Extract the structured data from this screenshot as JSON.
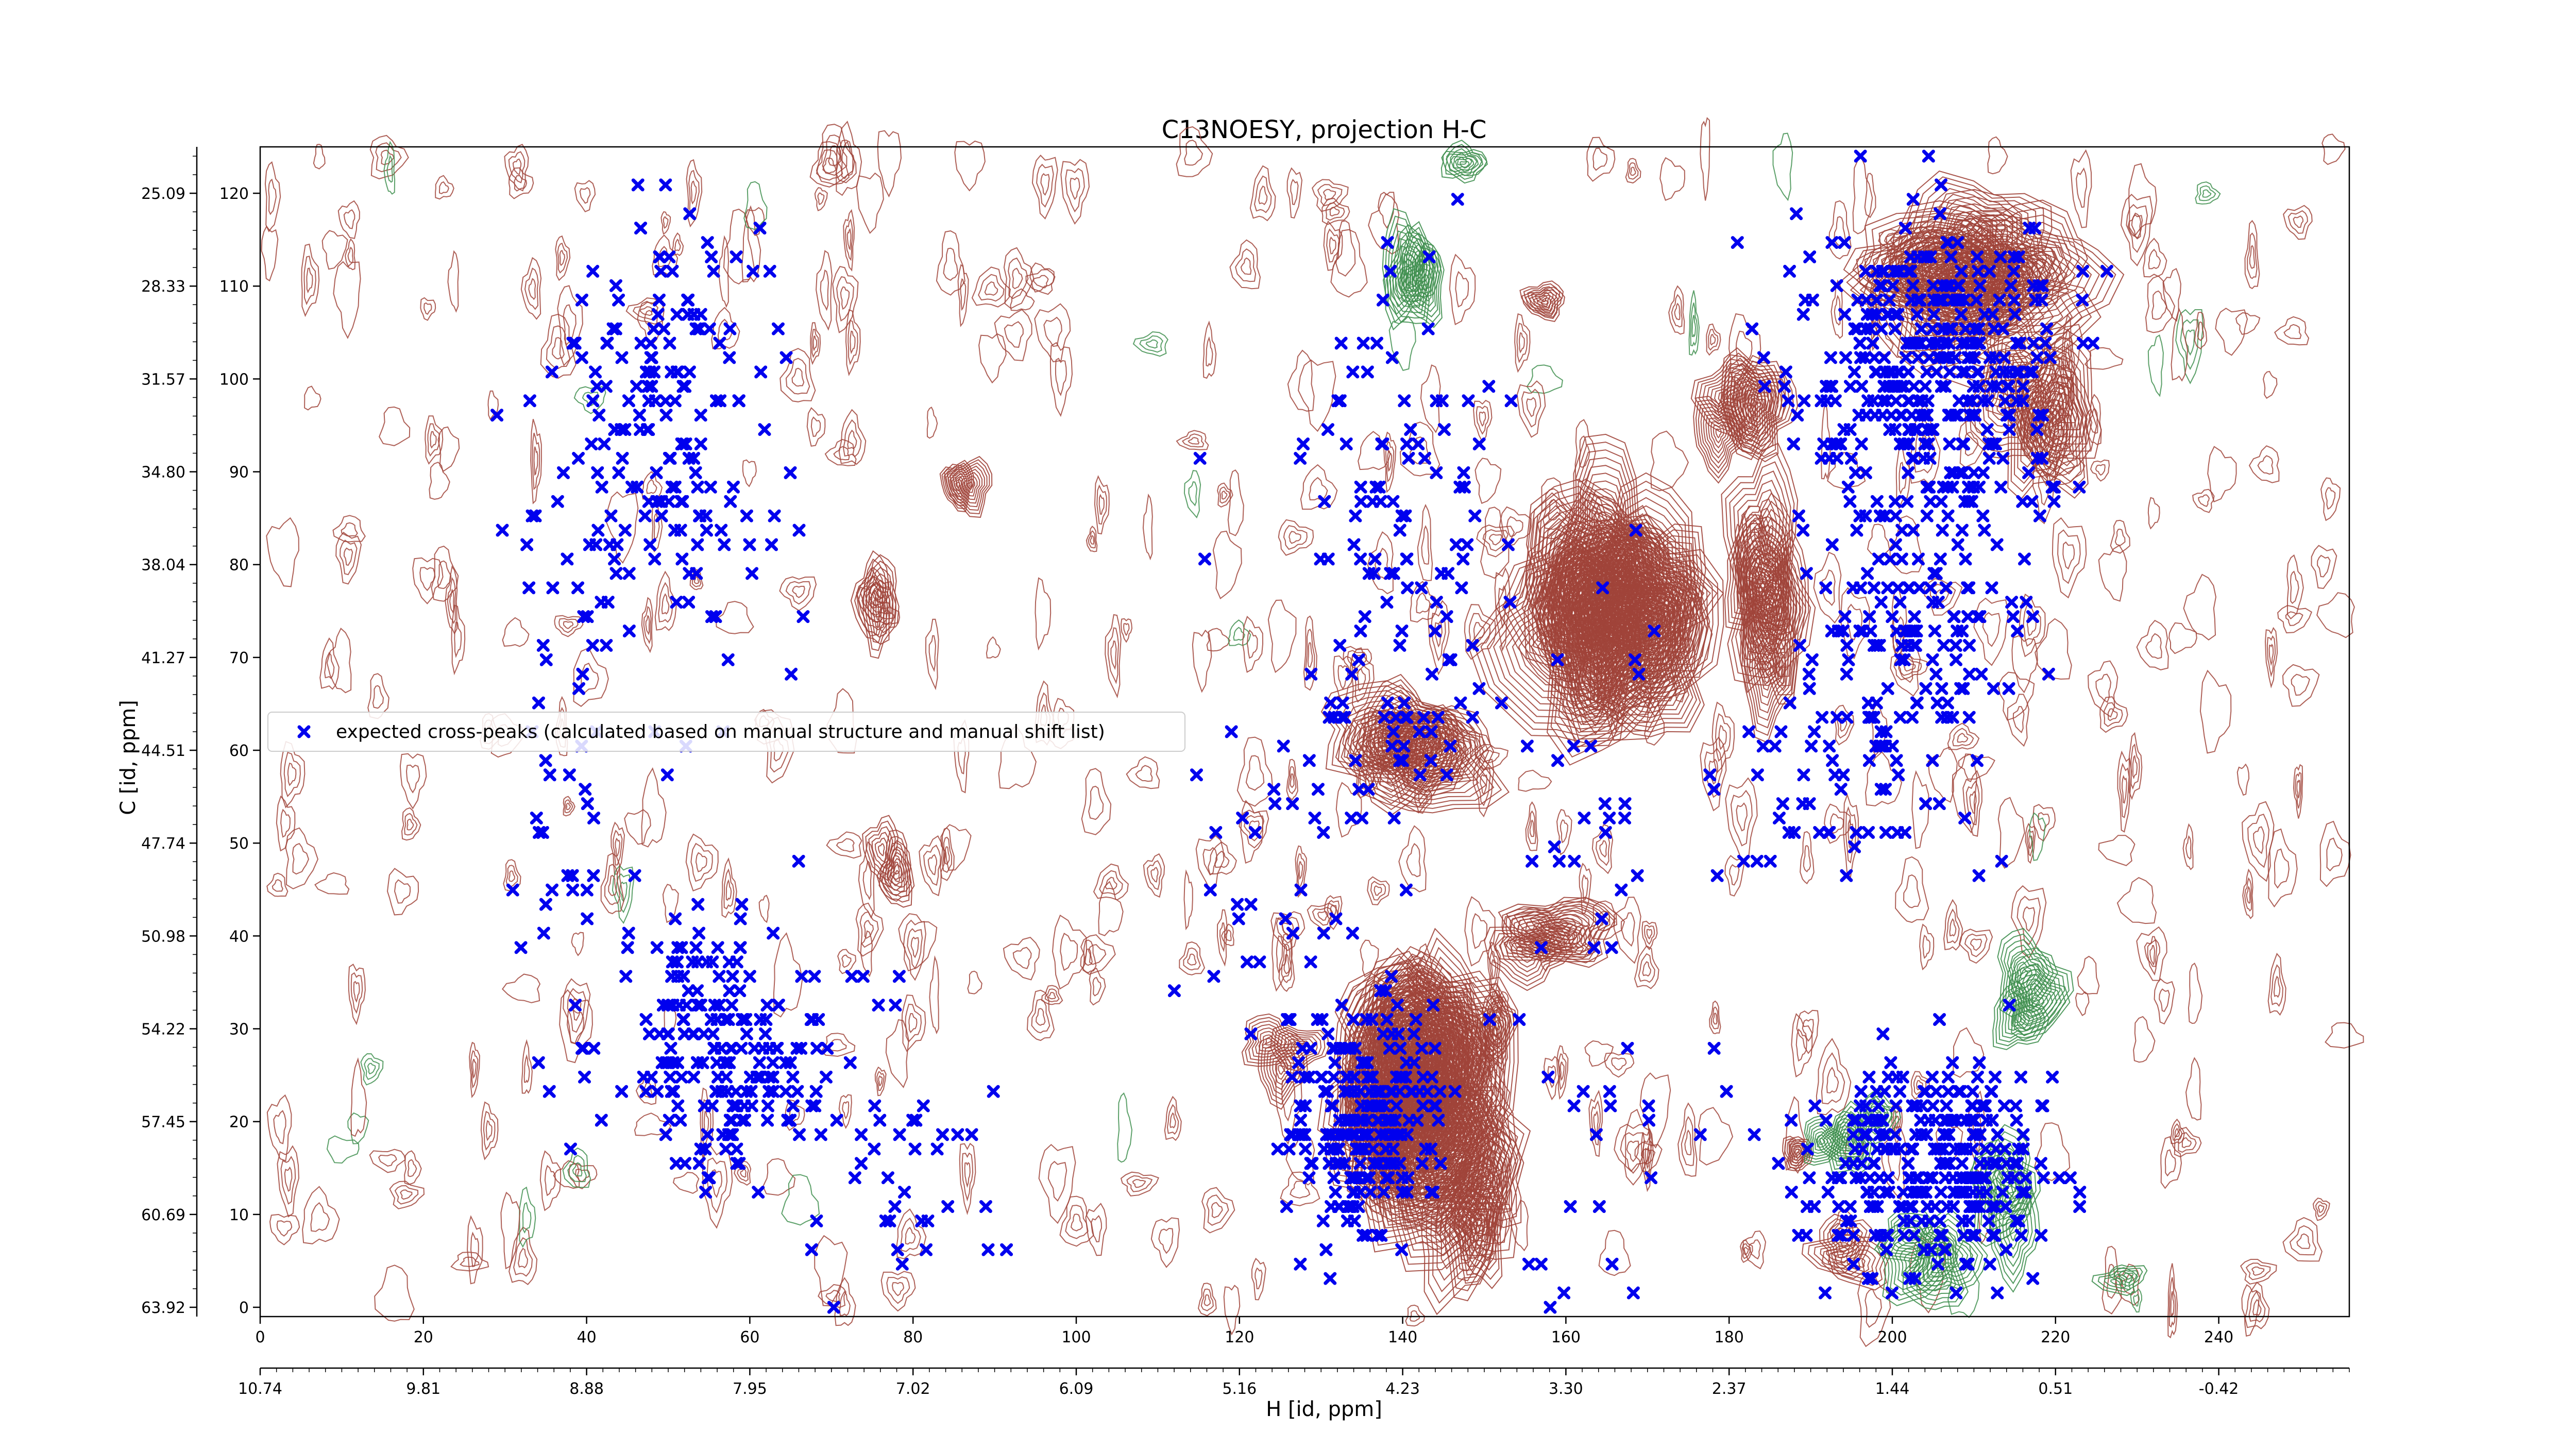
{
  "chart_data": {
    "type": "scatter",
    "title": "C13NOESY, projection H-C",
    "xlabel": "H [id, ppm]",
    "ylabel": "C [id, ppm]",
    "xlim": [
      0,
      256
    ],
    "ylim": [
      -1,
      125
    ],
    "x_index_ticks": [
      "0",
      "20",
      "40",
      "60",
      "80",
      "100",
      "120",
      "140",
      "160",
      "180",
      "200",
      "220",
      "240"
    ],
    "x_ppm_ticks": [
      "10.74",
      "9.81",
      "8.88",
      "7.95",
      "7.02",
      "6.09",
      "5.16",
      "4.23",
      "3.30",
      "2.37",
      "1.44",
      "0.51",
      "-0.42"
    ],
    "y_index_ticks": [
      "0",
      "10",
      "20",
      "30",
      "40",
      "50",
      "60",
      "70",
      "80",
      "90",
      "100",
      "110",
      "120"
    ],
    "y_ppm_ticks": [
      "63.92",
      "60.69",
      "57.45",
      "54.22",
      "50.98",
      "47.74",
      "44.51",
      "41.27",
      "38.04",
      "34.80",
      "31.57",
      "28.33",
      "25.09"
    ],
    "legend": {
      "placement": "center-left",
      "entries": [
        "expected cross-peaks (calculated based on manual structure and manual shift list)"
      ]
    },
    "colors": {
      "points": "#0000ee",
      "positive_contours": "#a0443a",
      "negative_contours": "#3f8f4f"
    },
    "series": [
      {
        "name": "expected cross-peaks (calculated based on manual structure and manual shift list)",
        "marker": "x",
        "clusters": [
          {
            "cx": 57,
            "cy": 28,
            "sx": 10,
            "sy": 11,
            "n": 190
          },
          {
            "cx": 50,
            "cy": 95,
            "sx": 12,
            "sy": 22,
            "n": 170
          },
          {
            "cx": 38,
            "cy": 60,
            "sx": 8,
            "sy": 35,
            "n": 60
          },
          {
            "cx": 135,
            "cy": 20,
            "sx": 8,
            "sy": 11,
            "n": 230
          },
          {
            "cx": 140,
            "cy": 80,
            "sx": 10,
            "sy": 28,
            "n": 110
          },
          {
            "cx": 127,
            "cy": 55,
            "sx": 12,
            "sy": 30,
            "n": 50
          },
          {
            "cx": 205,
            "cy": 100,
            "sx": 14,
            "sy": 15,
            "n": 380
          },
          {
            "cx": 203,
            "cy": 72,
            "sx": 12,
            "sy": 12,
            "n": 120
          },
          {
            "cx": 205,
            "cy": 15,
            "sx": 13,
            "sy": 10,
            "n": 300
          },
          {
            "cx": 195,
            "cy": 55,
            "sx": 12,
            "sy": 8,
            "n": 50
          },
          {
            "cx": 165,
            "cy": 40,
            "sx": 12,
            "sy": 30,
            "n": 50
          },
          {
            "cx": 80,
            "cy": 15,
            "sx": 10,
            "sy": 15,
            "n": 40
          }
        ]
      }
    ],
    "contour_clusters": [
      {
        "cx": 87,
        "cy": 90,
        "sx": 3,
        "sy": 4,
        "rings": 9,
        "sign": "positive"
      },
      {
        "cx": 76,
        "cy": 76,
        "sx": 3,
        "sy": 5,
        "rings": 6,
        "sign": "positive"
      },
      {
        "cx": 77,
        "cy": 47,
        "sx": 3,
        "sy": 5,
        "rings": 6,
        "sign": "positive"
      },
      {
        "cx": 141,
        "cy": 60,
        "sx": 9,
        "sy": 6,
        "rings": 10,
        "sign": "positive"
      },
      {
        "cx": 166,
        "cy": 75,
        "sx": 10,
        "sy": 12,
        "rings": 14,
        "sign": "positive"
      },
      {
        "cx": 182,
        "cy": 96,
        "sx": 5,
        "sy": 6,
        "rings": 10,
        "sign": "positive"
      },
      {
        "cx": 185,
        "cy": 77,
        "sx": 5,
        "sy": 10,
        "rings": 10,
        "sign": "positive"
      },
      {
        "cx": 158,
        "cy": 108,
        "sx": 3,
        "sy": 3,
        "rings": 6,
        "sign": "positive"
      },
      {
        "cx": 143,
        "cy": 22,
        "sx": 10,
        "sy": 14,
        "rings": 14,
        "sign": "positive"
      },
      {
        "cx": 125,
        "cy": 28,
        "sx": 5,
        "sy": 4,
        "rings": 8,
        "sign": "positive"
      },
      {
        "cx": 152,
        "cy": 30,
        "sx": 3,
        "sy": 4,
        "rings": 7,
        "sign": "positive"
      },
      {
        "cx": 158,
        "cy": 40,
        "sx": 8,
        "sy": 4,
        "rings": 8,
        "sign": "positive"
      },
      {
        "cx": 188,
        "cy": 17,
        "sx": 2,
        "sy": 2,
        "rings": 6,
        "sign": "positive"
      },
      {
        "cx": 210,
        "cy": 111,
        "sx": 12,
        "sy": 8,
        "rings": 10,
        "sign": "positive"
      },
      {
        "cx": 218,
        "cy": 95,
        "sx": 6,
        "sy": 8,
        "rings": 8,
        "sign": "positive"
      },
      {
        "cx": 150,
        "cy": 10,
        "sx": 5,
        "sy": 8,
        "rings": 7,
        "sign": "positive"
      },
      {
        "cx": 196,
        "cy": 5,
        "sx": 5,
        "sy": 4,
        "rings": 6,
        "sign": "positive"
      },
      {
        "cx": 140,
        "cy": 110,
        "sx": 4,
        "sy": 6,
        "rings": 8,
        "sign": "negative"
      },
      {
        "cx": 147,
        "cy": 123,
        "sx": 3,
        "sy": 2,
        "rings": 5,
        "sign": "negative"
      },
      {
        "cx": 194,
        "cy": 18,
        "sx": 4,
        "sy": 4,
        "rings": 8,
        "sign": "negative"
      },
      {
        "cx": 205,
        "cy": 7,
        "sx": 5,
        "sy": 5,
        "rings": 8,
        "sign": "negative"
      },
      {
        "cx": 217,
        "cy": 33,
        "sx": 4,
        "sy": 6,
        "rings": 8,
        "sign": "negative"
      },
      {
        "cx": 214,
        "cy": 12,
        "sx": 4,
        "sy": 6,
        "rings": 7,
        "sign": "negative"
      },
      {
        "cx": 199,
        "cy": 20,
        "sx": 3,
        "sy": 3,
        "rings": 5,
        "sign": "negative"
      },
      {
        "cx": 228,
        "cy": 3,
        "sx": 3,
        "sy": 2,
        "rings": 4,
        "sign": "negative"
      }
    ]
  }
}
